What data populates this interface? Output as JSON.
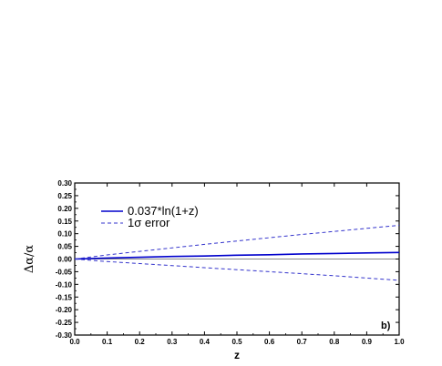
{
  "chart_data": {
    "type": "line",
    "title": "",
    "xlabel": "z",
    "ylabel": "Δα/α",
    "xlim": [
      0.0,
      1.0
    ],
    "ylim": [
      -0.3,
      0.3
    ],
    "x_ticks": [
      "0.0",
      "0.1",
      "0.2",
      "0.3",
      "0.4",
      "0.5",
      "0.6",
      "0.7",
      "0.8",
      "0.9",
      "1.0"
    ],
    "y_ticks": [
      "0.30",
      "0.25",
      "0.20",
      "0.15",
      "0.10",
      "0.05",
      "0.00",
      "-0.05",
      "-0.10",
      "-0.15",
      "-0.20",
      "-0.25",
      "-0.30"
    ],
    "x": [
      0.0,
      0.1,
      0.2,
      0.3,
      0.4,
      0.5,
      0.6,
      0.7,
      0.8,
      0.9,
      1.0
    ],
    "series": [
      {
        "name": "0.037*ln(1+z)",
        "style": "solid",
        "color": "#0000cc",
        "values": [
          0.0,
          0.004,
          0.007,
          0.01,
          0.012,
          0.015,
          0.017,
          0.02,
          0.022,
          0.024,
          0.026
        ]
      },
      {
        "name": "1σ error",
        "style": "dashed",
        "color": "#3333cc",
        "values": [
          0.0,
          0.016,
          0.03,
          0.044,
          0.058,
          0.071,
          0.084,
          0.097,
          0.109,
          0.121,
          0.133
        ]
      },
      {
        "name": "",
        "style": "dashed",
        "color": "#3333cc",
        "values": [
          0.0,
          -0.01,
          -0.018,
          -0.026,
          -0.034,
          -0.042,
          -0.05,
          -0.058,
          -0.066,
          -0.075,
          -0.084
        ]
      }
    ],
    "reference_line": {
      "y": 0.0,
      "color": "#888888"
    },
    "grid": false,
    "legend": {
      "position": "top-left",
      "entries": [
        {
          "label": "0.037*ln(1+z)",
          "style": "solid",
          "color": "#0000cc"
        },
        {
          "label": "1σ error",
          "style": "dashed",
          "color": "#3333cc"
        }
      ]
    },
    "annotations": [
      {
        "text": "b)",
        "position": "bottom-right"
      }
    ]
  }
}
